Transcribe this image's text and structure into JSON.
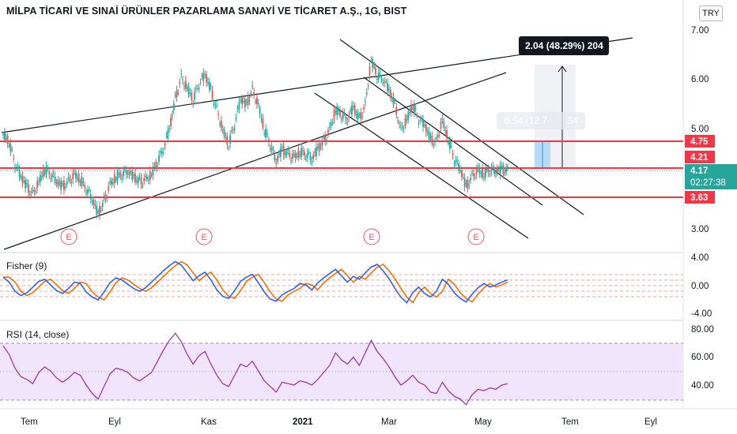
{
  "header": {
    "title": "MİLPA TİCARİ VE SINAİ ÜRÜNLER PAZARLAMA SANAYİ VE TİCARET A.Ş., 1G, BIST",
    "currency": "TRY"
  },
  "price_pane": {
    "y_ticks": [
      "7.00",
      "6.00",
      "5.00",
      "3.00"
    ],
    "earnings_markers": [
      "E",
      "E",
      "E",
      "E"
    ],
    "measure_primary": "2.04 (48.29%) 204",
    "measure_secondary": "0.54 (12.7",
    "measure_secondary_tail": ".54",
    "level_tags": [
      {
        "label": "4.75",
        "color": "#f23645"
      },
      {
        "label": "4.21",
        "color": "#f23645"
      },
      {
        "label": "3.63",
        "color": "#f23645"
      }
    ],
    "last_price": "4.17",
    "countdown": "02:27:38",
    "last_price_color": "#26a69a"
  },
  "fisher_pane": {
    "title": "Fisher (9)",
    "y_ticks": [
      "4.00",
      "0.00",
      "-4.00"
    ],
    "colors": {
      "fisher": "#2962ff",
      "trigger": "#ff6d00"
    }
  },
  "rsi_pane": {
    "title": "RSI (14, close)",
    "y_ticks": [
      "80.00",
      "60.00",
      "40.00"
    ],
    "color": "#9c27b0",
    "band_color": "#ede1fb"
  },
  "time_axis": [
    "Tem",
    "Eyl",
    "Kas",
    "2021",
    "Mar",
    "May",
    "Tem",
    "Eyl"
  ],
  "colors": {
    "up": "#26a69a",
    "down": "#ef5350",
    "level": "#f23645",
    "trend": "#131722"
  },
  "chart_data": {
    "type": "candlestick",
    "interval": "1G",
    "ylim": [
      2.6,
      7.2
    ],
    "horizontal_levels": [
      4.75,
      4.21,
      3.63
    ],
    "closes": [
      4.9,
      4.75,
      4.3,
      4.05,
      3.85,
      3.7,
      3.95,
      4.2,
      4.1,
      3.95,
      3.85,
      3.95,
      4.1,
      4.0,
      3.8,
      3.6,
      3.3,
      3.55,
      3.9,
      4.05,
      4.1,
      4.15,
      4.05,
      3.95,
      4.0,
      4.1,
      4.35,
      4.6,
      5.0,
      5.6,
      6.05,
      5.85,
      5.6,
      5.9,
      6.1,
      5.8,
      5.4,
      5.0,
      4.7,
      5.1,
      5.6,
      5.5,
      5.8,
      5.5,
      5.0,
      4.7,
      4.35,
      4.6,
      4.5,
      4.45,
      4.55,
      4.5,
      4.4,
      4.6,
      4.75,
      5.0,
      5.4,
      5.3,
      5.2,
      5.45,
      5.2,
      5.5,
      6.4,
      6.1,
      6.0,
      5.8,
      5.5,
      5.0,
      5.2,
      5.5,
      5.2,
      5.1,
      4.8,
      4.75,
      5.2,
      4.8,
      4.4,
      4.2,
      3.85,
      4.05,
      4.2,
      4.1,
      4.2,
      4.15,
      4.2,
      4.17
    ],
    "fisher": [
      1.2,
      0.5,
      -0.8,
      -1.4,
      -1.0,
      -0.2,
      0.6,
      0.9,
      0.1,
      -0.7,
      -1.1,
      -0.4,
      0.5,
      0.3,
      -0.9,
      -1.6,
      -2.0,
      -0.9,
      0.4,
      1.1,
      0.8,
      0.2,
      -0.4,
      -0.8,
      -0.3,
      0.5,
      1.3,
      2.1,
      2.8,
      3.4,
      2.9,
      1.8,
      0.7,
      1.4,
      1.9,
      0.8,
      -0.6,
      -1.5,
      -1.8,
      -0.7,
      0.6,
      1.2,
      1.6,
      0.4,
      -0.9,
      -1.9,
      -2.2,
      -1.3,
      -0.8,
      -0.4,
      0.3,
      0.1,
      -0.6,
      0.4,
      1.1,
      1.7,
      2.3,
      1.4,
      0.5,
      1.3,
      0.9,
      1.8,
      2.6,
      3.0,
      2.1,
      1.0,
      -0.4,
      -1.6,
      -2.4,
      -1.0,
      -0.2,
      -1.1,
      -1.6,
      -0.8,
      0.9,
      0.2,
      -1.0,
      -1.8,
      -2.3,
      -1.2,
      -0.3,
      0.3,
      -0.2,
      0.1,
      0.5,
      0.8
    ],
    "rsi": [
      68,
      62,
      52,
      46,
      44,
      41,
      49,
      53,
      50,
      45,
      42,
      45,
      49,
      47,
      40,
      34,
      30,
      39,
      48,
      52,
      51,
      49,
      45,
      43,
      46,
      49,
      57,
      65,
      72,
      77,
      71,
      62,
      55,
      61,
      64,
      55,
      47,
      41,
      39,
      47,
      55,
      53,
      57,
      50,
      43,
      39,
      35,
      42,
      41,
      40,
      43,
      42,
      40,
      44,
      49,
      54,
      63,
      58,
      55,
      60,
      54,
      63,
      72,
      64,
      59,
      53,
      46,
      40,
      43,
      47,
      42,
      40,
      35,
      34,
      42,
      36,
      32,
      30,
      26,
      33,
      37,
      36,
      38,
      37,
      40,
      41
    ],
    "fisher_ylim": [
      -5,
      5
    ],
    "rsi_ylim": [
      23,
      85
    ],
    "rsi_band": [
      30,
      70
    ]
  }
}
